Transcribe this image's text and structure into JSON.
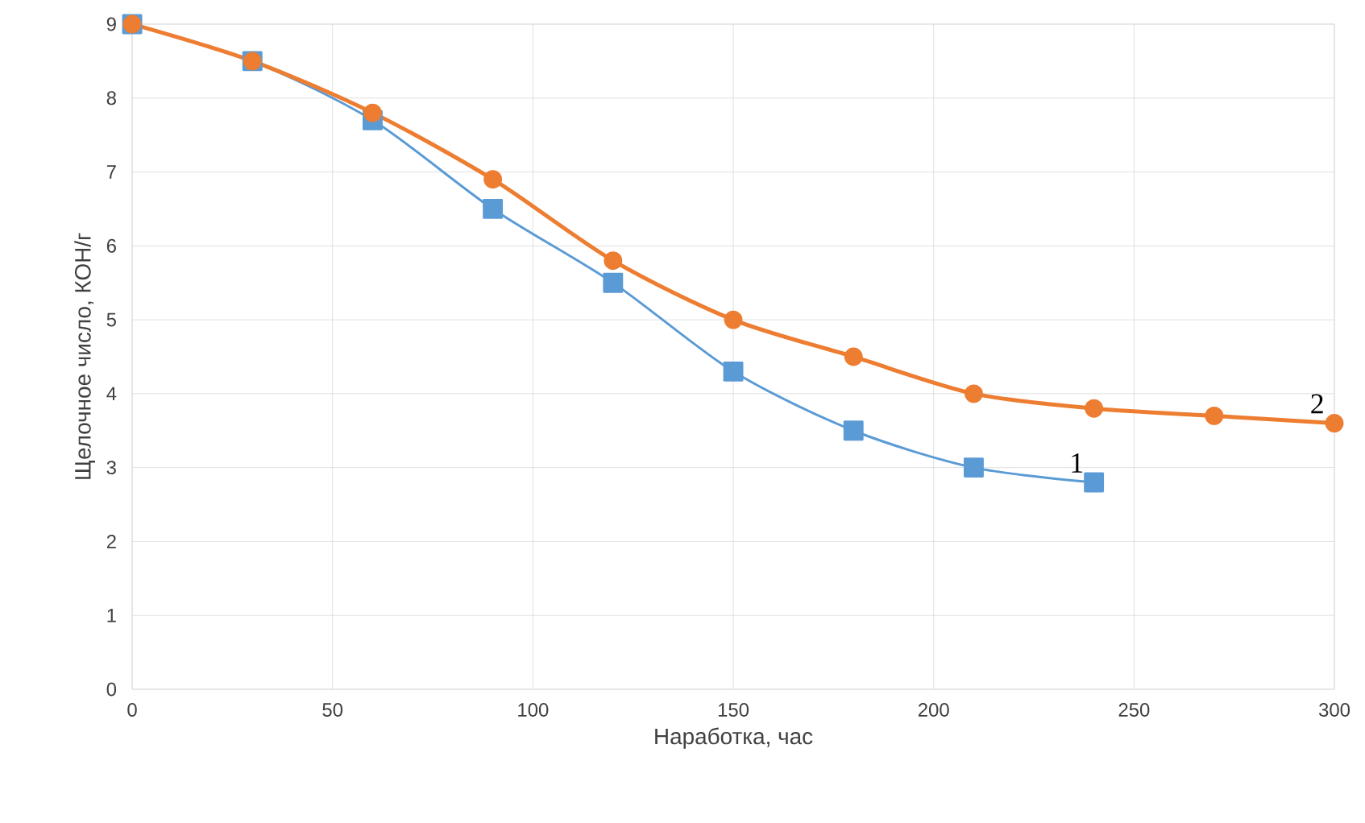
{
  "chart_data": {
    "type": "line",
    "xlabel": "Наработка, час",
    "ylabel": "Щелочное число, КОН/г",
    "xlim": [
      0,
      300
    ],
    "ylim": [
      0,
      9
    ],
    "xticks": [
      0,
      50,
      100,
      150,
      200,
      250,
      300
    ],
    "yticks": [
      0,
      1,
      2,
      3,
      4,
      5,
      6,
      7,
      8,
      9
    ],
    "grid": true,
    "line_style": "solid",
    "series": [
      {
        "name": "1",
        "color": "#5b9bd5",
        "marker": "square",
        "x": [
          0,
          30,
          60,
          90,
          120,
          150,
          180,
          210,
          240
        ],
        "values": [
          9,
          8.5,
          7.7,
          6.5,
          5.5,
          4.3,
          3.5,
          3.0,
          2.8
        ]
      },
      {
        "name": "2",
        "color": "#ed7d31",
        "marker": "circle",
        "x": [
          0,
          30,
          60,
          90,
          120,
          150,
          180,
          210,
          240,
          270,
          300
        ],
        "values": [
          9,
          8.5,
          7.8,
          6.9,
          5.8,
          5.0,
          4.5,
          4.0,
          3.8,
          3.7,
          3.6
        ]
      }
    ]
  }
}
